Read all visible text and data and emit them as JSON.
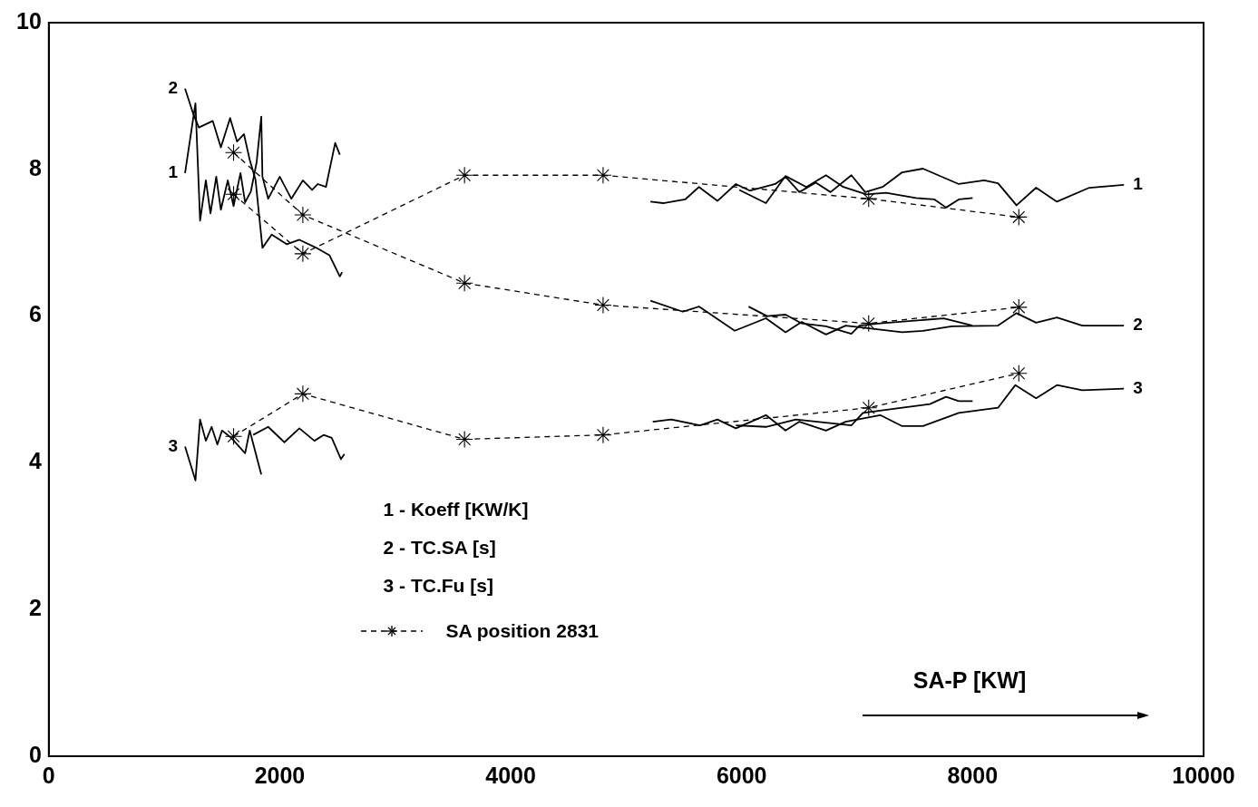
{
  "chart_data": {
    "type": "line",
    "xlabel": "SA-P [KW]",
    "xlim": [
      0,
      10000
    ],
    "xticks": [
      0,
      2000,
      4000,
      6000,
      8000,
      10000
    ],
    "ylim": [
      0,
      10
    ],
    "yticks": [
      0,
      2,
      4,
      6,
      8,
      10
    ],
    "grid": false,
    "legend": "bottom left",
    "marker": "none",
    "line_style": "solid",
    "annotations": [
      "1 - Koeff [KW/K]",
      "2 - TC.SA [s]",
      "3 - TC.Fu [s]"
    ],
    "series": [
      {
        "name": "1",
        "color": "#000000",
        "x": [
          1180,
          1270,
          1310,
          1360,
          1400,
          1450,
          1490,
          1550,
          1600,
          1660,
          1700,
          1750,
          1800,
          1840,
          1850,
          1900,
          2000,
          2100,
          2200,
          2280,
          2330,
          2400,
          2480,
          2520
        ],
        "values": [
          7.95,
          8.9,
          7.3,
          7.85,
          7.4,
          7.9,
          7.45,
          7.85,
          7.5,
          7.95,
          7.55,
          7.7,
          8.1,
          8.72,
          7.9,
          7.6,
          7.9,
          7.6,
          7.85,
          7.72,
          7.8,
          7.76,
          8.36,
          8.2
        ]
      },
      {
        "name": "2",
        "color": "#000000",
        "x": [
          1180,
          1250,
          1300,
          1420,
          1490,
          1570,
          1630,
          1690,
          1740,
          1790,
          1850,
          1930,
          2060,
          2170,
          2330,
          2430,
          2520,
          2540
        ],
        "values": [
          9.1,
          8.76,
          8.57,
          8.66,
          8.3,
          8.7,
          8.38,
          8.48,
          8.13,
          7.86,
          6.93,
          7.11,
          6.98,
          7.04,
          6.92,
          6.83,
          6.54,
          6.6
        ]
      },
      {
        "name": "3",
        "color": "#000000",
        "x": [
          1180,
          1270,
          1310,
          1360,
          1410,
          1460,
          1500,
          1580,
          1700,
          1740,
          1840
        ],
        "values": [
          4.22,
          3.76,
          4.59,
          4.3,
          4.49,
          4.25,
          4.44,
          4.34,
          4.13,
          4.44,
          3.84
        ]
      },
      {
        "color": "#000000",
        "x": [
          1770,
          1900,
          2040,
          2170,
          2300,
          2380,
          2450,
          2530,
          2560
        ],
        "values": [
          4.38,
          4.49,
          4.28,
          4.47,
          4.3,
          4.38,
          4.34,
          4.05,
          4.12
        ]
      },
      {
        "name": "1",
        "color": "#000000",
        "x": [
          5210,
          5320,
          5510,
          5630,
          5790,
          5950,
          6070,
          6290,
          6380,
          6500,
          6640,
          6770,
          6950,
          7070,
          7220,
          7390,
          7570,
          7880,
          8100,
          8220,
          8380,
          8550,
          8730,
          9010,
          9310
        ],
        "values": [
          7.56,
          7.54,
          7.59,
          7.76,
          7.57,
          7.8,
          7.71,
          7.8,
          7.9,
          7.69,
          7.82,
          7.69,
          7.92,
          7.69,
          7.76,
          7.96,
          8.01,
          7.8,
          7.85,
          7.81,
          7.51,
          7.75,
          7.56,
          7.75,
          7.79
        ]
      },
      {
        "color": "#000000",
        "x": [
          5980,
          6210,
          6380,
          6560,
          6730,
          6880,
          7080,
          7250,
          7510,
          7670,
          7770,
          7880,
          8000
        ],
        "values": [
          7.72,
          7.54,
          7.91,
          7.76,
          7.92,
          7.76,
          7.66,
          7.68,
          7.61,
          7.59,
          7.48,
          7.59,
          7.61
        ]
      },
      {
        "name": "2",
        "color": "#000000",
        "x": [
          5210,
          5490,
          5630,
          5940,
          6210,
          6380,
          6520,
          6730,
          6900,
          7390,
          7570,
          7820,
          8220,
          8380,
          8550,
          8730,
          8950,
          9310
        ],
        "values": [
          6.21,
          6.06,
          6.13,
          5.8,
          5.97,
          5.78,
          5.92,
          5.75,
          5.87,
          5.78,
          5.8,
          5.86,
          5.87,
          6.04,
          5.91,
          5.98,
          5.87,
          5.87
        ]
      },
      {
        "color": "#000000",
        "x": [
          6060,
          6220,
          6380,
          6520,
          6730,
          6950,
          7020,
          7200,
          7750,
          8000
        ],
        "values": [
          6.13,
          6.0,
          6.02,
          5.9,
          5.86,
          5.76,
          5.87,
          5.9,
          5.97,
          5.87
        ]
      },
      {
        "name": "3",
        "color": "#000000",
        "x": [
          5230,
          5390,
          5640,
          5790,
          5950,
          6210,
          6380,
          6500,
          6730,
          6900,
          7200,
          7390,
          7570,
          7880,
          8220,
          8370,
          8550,
          8730,
          8950,
          9310
        ],
        "values": [
          4.56,
          4.59,
          4.51,
          4.59,
          4.47,
          4.65,
          4.44,
          4.56,
          4.44,
          4.56,
          4.65,
          4.5,
          4.5,
          4.68,
          4.75,
          5.06,
          4.88,
          5.06,
          4.99,
          5.01
        ]
      },
      {
        "color": "#000000",
        "x": [
          5950,
          6210,
          6470,
          6950,
          7050,
          7390,
          7630,
          7770,
          7880,
          8000
        ],
        "values": [
          4.51,
          4.49,
          4.59,
          4.51,
          4.68,
          4.75,
          4.8,
          4.9,
          4.84,
          4.84
        ]
      },
      {
        "name": "SA position 2831",
        "color": "#000000",
        "marker": "cross",
        "line_style": "dashed",
        "x": [
          1600,
          2200,
          3600,
          4800,
          7100,
          8400
        ],
        "values": [
          7.66,
          6.85,
          7.92,
          7.92,
          7.6,
          7.35
        ]
      },
      {
        "color": "#000000",
        "marker": "cross",
        "line_style": "dashed",
        "x": [
          1600,
          2200,
          3600,
          4800,
          7100,
          8400
        ],
        "values": [
          8.23,
          7.38,
          6.45,
          6.15,
          5.9,
          6.12
        ]
      },
      {
        "color": "#000000",
        "marker": "cross",
        "line_style": "dashed",
        "x": [
          1600,
          2200,
          3600,
          4800,
          7100,
          8400
        ],
        "values": [
          4.36,
          4.94,
          4.32,
          4.38,
          4.75,
          5.22
        ]
      }
    ]
  }
}
